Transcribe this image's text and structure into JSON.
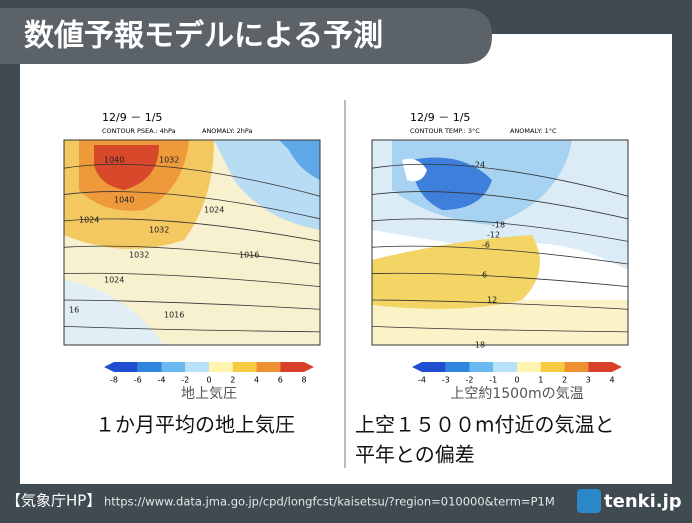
{
  "title": "数値予報モデルによる予測",
  "panels": [
    {
      "period": "12/9 － 1/5",
      "contour": "CONTOUR PSEA.: 4hPa",
      "anomaly": "ANOMALY: 2hPa",
      "contour_labels": [
        "1040",
        "1032",
        "1040",
        "1024",
        "1032",
        "1024",
        "1032",
        "1016",
        "1024",
        "1016",
        "16"
      ],
      "colorbar_ticks": [
        "-8",
        "-6",
        "-4",
        "-2",
        "0",
        "2",
        "4",
        "6",
        "8"
      ],
      "colorbar_label": "地上気圧",
      "caption": [
        "１か月平均の地上気圧"
      ]
    },
    {
      "period": "12/9 － 1/5",
      "contour": "CONTOUR TEMP.: 3°C",
      "anomaly": "ANOMALY: 1°C",
      "contour_labels": [
        "-24",
        "-18",
        "-12",
        "-6",
        "6",
        "12",
        "-18"
      ],
      "colorbar_ticks": [
        "-4",
        "-3",
        "-2",
        "-1",
        "0",
        "1",
        "2",
        "3",
        "4"
      ],
      "colorbar_label": "上空約1500mの気温",
      "caption": [
        "上空１５００m付近の気温と",
        "平年との偏差"
      ]
    }
  ],
  "footer": {
    "source": "【気象庁HP】",
    "url": "https://www.data.jma.go.jp/cpd/longfcst/kaisetsu/?region=010000&term=P1M",
    "logo": "tenki.jp"
  }
}
